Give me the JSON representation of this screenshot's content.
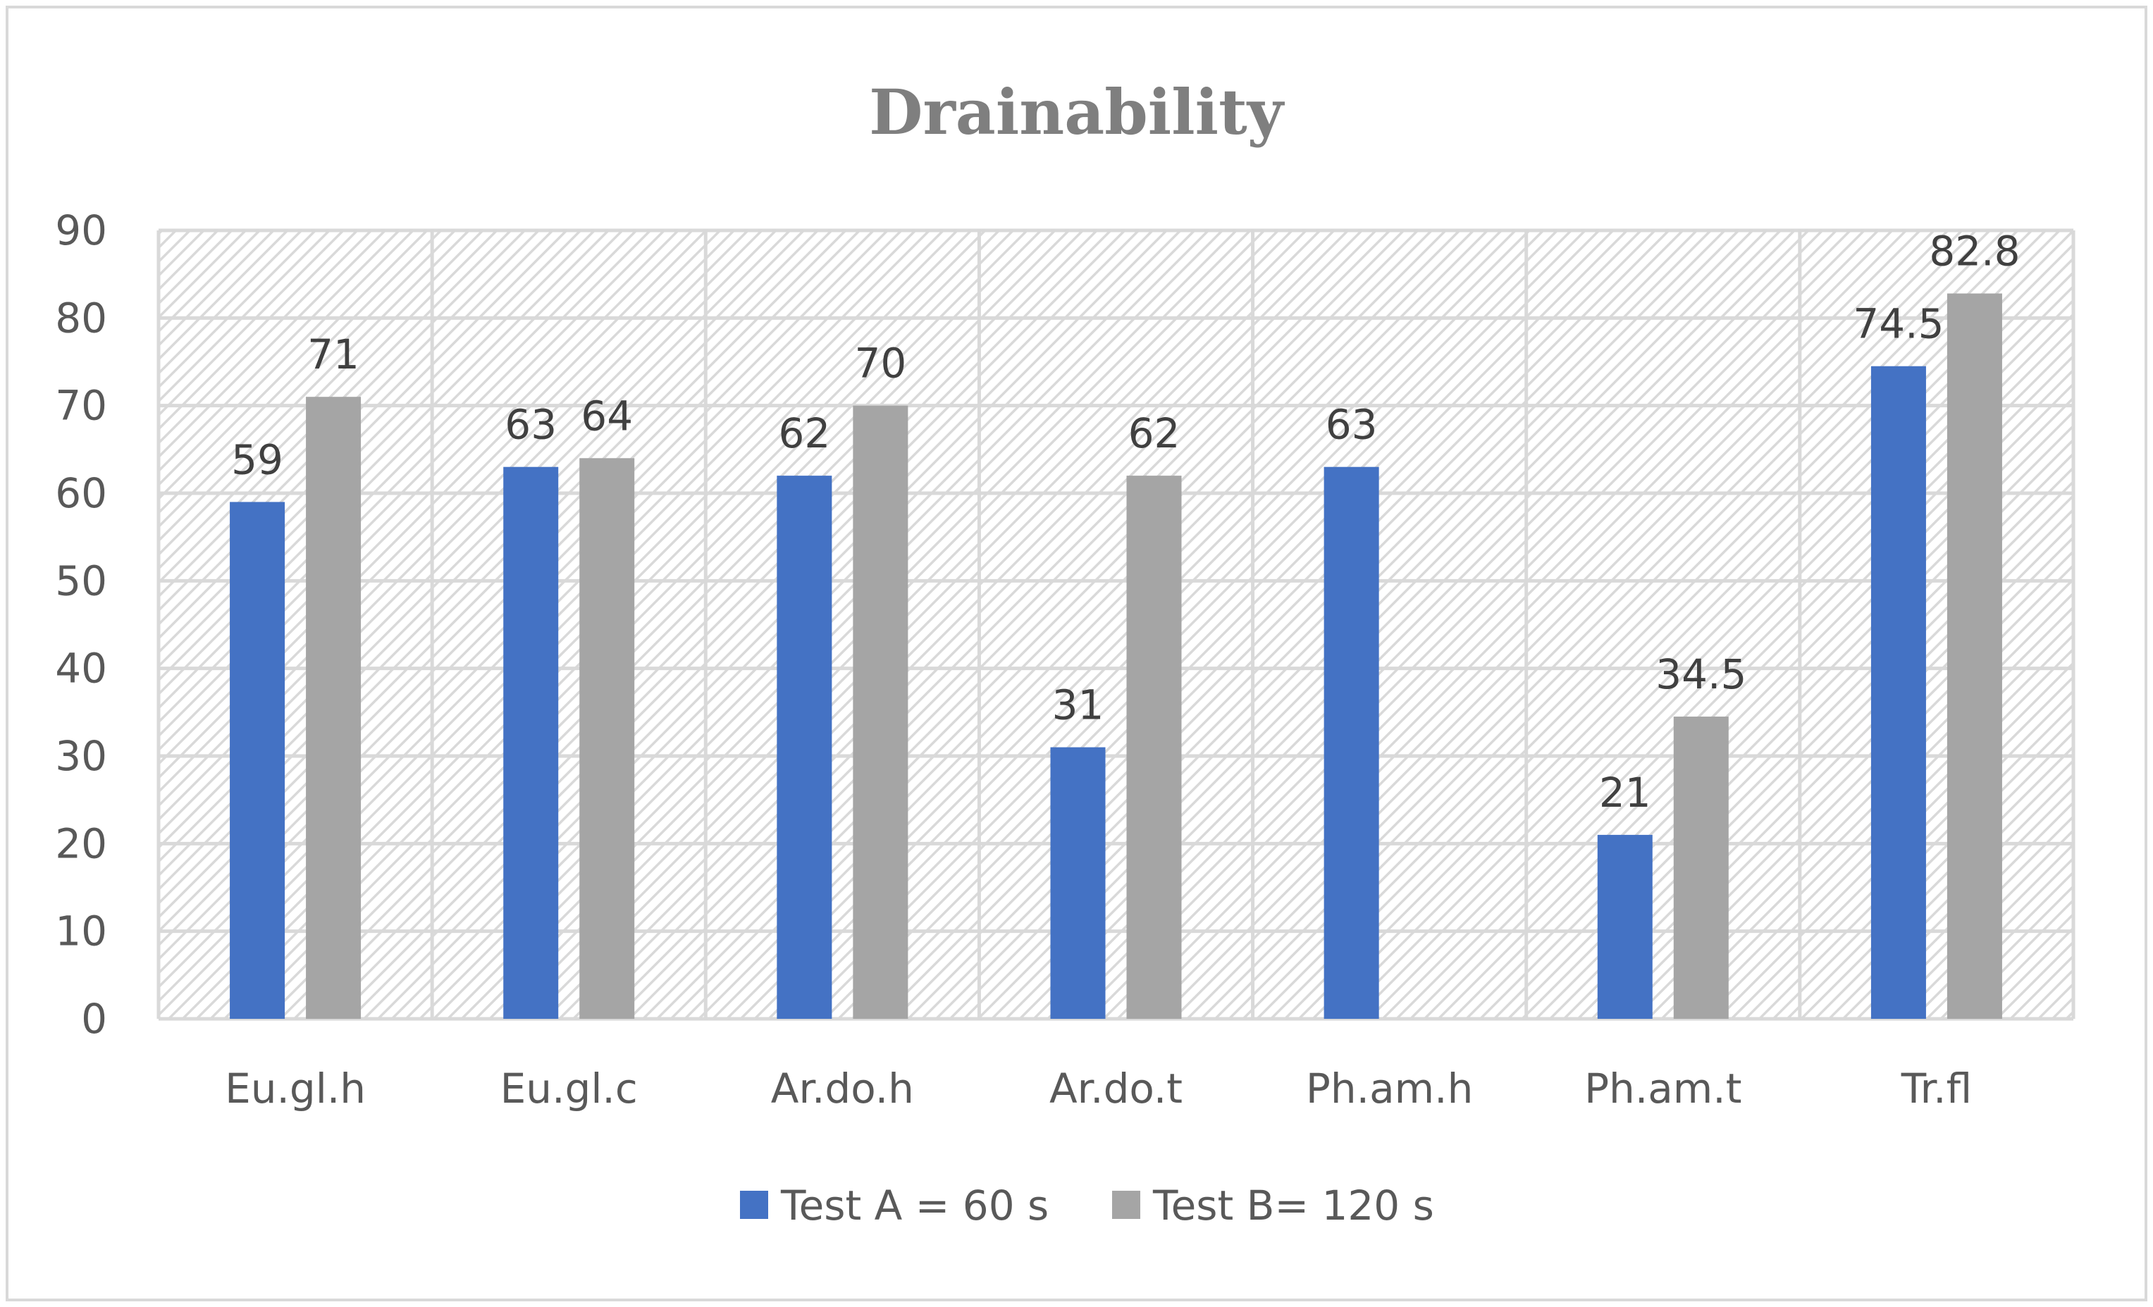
{
  "chart_data": {
    "type": "bar",
    "title": "Drainability",
    "categories": [
      "Eu.gl.h",
      "Eu.gl.c",
      "Ar.do.h",
      "Ar.do.t",
      "Ph.am.h",
      "Ph.am.t",
      "Tr.fl"
    ],
    "series": [
      {
        "name": "Test A = 60 s",
        "color": "#4472c4",
        "values": [
          59,
          63,
          62,
          31,
          63,
          21,
          74.5
        ]
      },
      {
        "name": "Test B= 120 s",
        "color": "#a5a5a5",
        "values": [
          71,
          64,
          70,
          62,
          null,
          34.5,
          82.8
        ]
      }
    ],
    "ylim": [
      0,
      90
    ],
    "yticks": [
      0,
      10,
      20,
      30,
      40,
      50,
      60,
      70,
      80,
      90
    ],
    "xlabel": "",
    "ylabel": "",
    "grid": true,
    "legend_position": "bottom"
  }
}
